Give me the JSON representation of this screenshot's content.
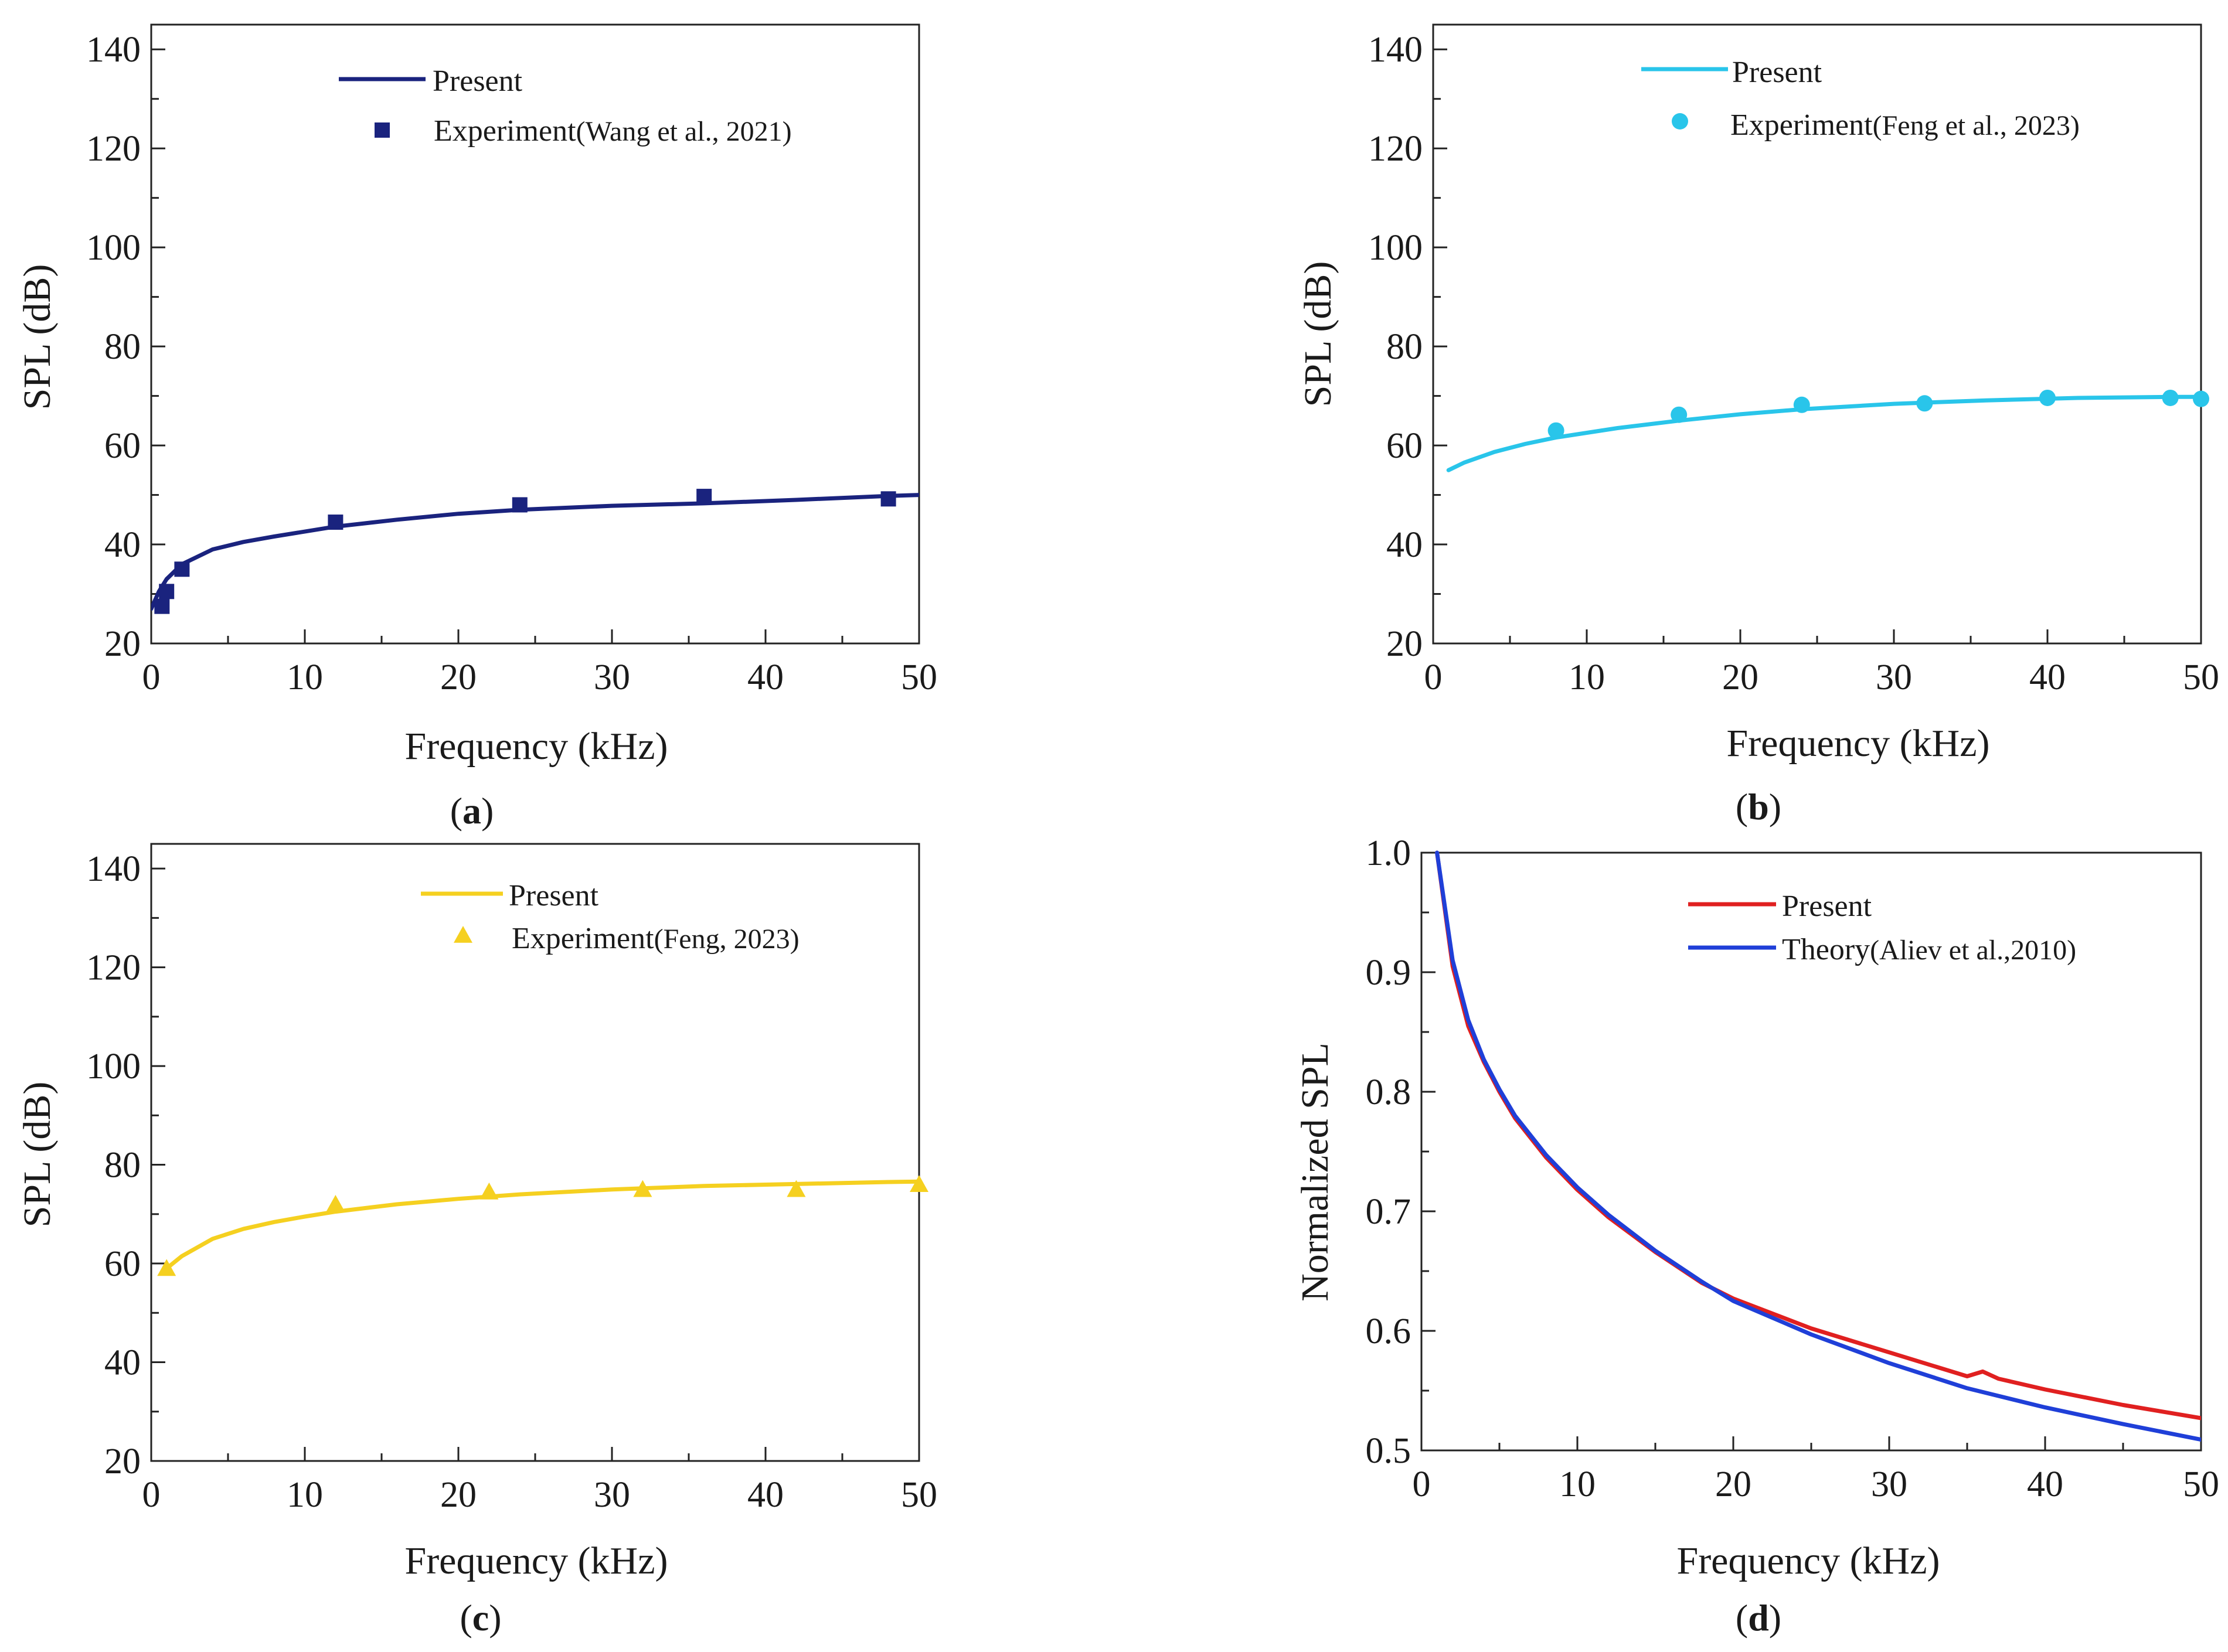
{
  "chart_data": [
    {
      "type": "line",
      "panel": "a",
      "caption_letter": "a",
      "xlabel": "Frequency (kHz)",
      "ylabel": "SPL (dB)",
      "xlim": [
        0,
        50
      ],
      "ylim": [
        20,
        145
      ],
      "xticks": [
        0,
        10,
        20,
        30,
        40,
        50
      ],
      "yticks": [
        20,
        40,
        60,
        80,
        100,
        120,
        140
      ],
      "legend_position": "top-center",
      "series": [
        {
          "name": "Present",
          "kind": "line",
          "color": "#1a237e",
          "x": [
            0,
            0.5,
            1,
            2,
            4,
            6,
            8,
            12,
            16,
            20,
            24,
            30,
            36,
            42,
            48,
            50
          ],
          "y": [
            27,
            30.5,
            33,
            36,
            39,
            40.5,
            41.6,
            43.6,
            45,
            46.2,
            47,
            47.8,
            48.3,
            49,
            49.8,
            50
          ]
        },
        {
          "name": "Experiment",
          "name_note": "(Wang et al., 2021)",
          "kind": "marker",
          "marker": "square",
          "color": "#1a237e",
          "x": [
            0.7,
            1,
            2,
            12,
            24,
            36,
            48
          ],
          "y": [
            27.5,
            30.5,
            35,
            44.5,
            48,
            49.7,
            49.2
          ]
        }
      ]
    },
    {
      "type": "line",
      "panel": "b",
      "caption_letter": "b",
      "xlabel": "Frequency (kHz)",
      "ylabel": "SPL (dB)",
      "xlim": [
        0,
        50
      ],
      "ylim": [
        20,
        145
      ],
      "xticks": [
        0,
        10,
        20,
        30,
        40,
        50
      ],
      "yticks": [
        20,
        40,
        60,
        80,
        100,
        120,
        140
      ],
      "legend_position": "top-center",
      "series": [
        {
          "name": "Present",
          "kind": "line",
          "color": "#29c5ea",
          "x": [
            1,
            2,
            4,
            6,
            8,
            12,
            16,
            20,
            24,
            30,
            36,
            42,
            48,
            50
          ],
          "y": [
            55,
            56.5,
            58.7,
            60.3,
            61.6,
            63.5,
            65,
            66.3,
            67.3,
            68.4,
            69.1,
            69.6,
            69.8,
            69.8
          ]
        },
        {
          "name": "Experiment",
          "name_note": "(Feng et al., 2023)",
          "kind": "marker",
          "marker": "circle",
          "color": "#29c5ea",
          "x": [
            8,
            16,
            24,
            32,
            40,
            48,
            50
          ],
          "y": [
            63,
            66.2,
            68.2,
            68.5,
            69.6,
            69.6,
            69.4
          ]
        }
      ]
    },
    {
      "type": "line",
      "panel": "c",
      "caption_letter": "c",
      "xlabel": "Frequency (kHz)",
      "ylabel": "SPL (dB)",
      "xlim": [
        0,
        50
      ],
      "ylim": [
        20,
        145
      ],
      "xticks": [
        0,
        10,
        20,
        30,
        40,
        50
      ],
      "yticks": [
        20,
        40,
        60,
        80,
        100,
        120,
        140
      ],
      "legend_position": "top-center",
      "series": [
        {
          "name": "Present",
          "kind": "line",
          "color": "#f5d020",
          "x": [
            1,
            2,
            4,
            6,
            8,
            10,
            12,
            16,
            20,
            24,
            30,
            36,
            42,
            48,
            50
          ],
          "y": [
            59,
            61.5,
            65,
            67,
            68.4,
            69.5,
            70.5,
            72,
            73.1,
            74,
            75,
            75.7,
            76.1,
            76.5,
            76.6
          ]
        },
        {
          "name": "Experiment",
          "name_note": "(Feng, 2023)",
          "kind": "marker",
          "marker": "triangle",
          "color": "#f5d020",
          "x": [
            1,
            12,
            22,
            32,
            42,
            50
          ],
          "y": [
            59,
            72,
            74.5,
            75,
            75,
            76
          ]
        }
      ]
    },
    {
      "type": "line",
      "panel": "d",
      "caption_letter": "d",
      "xlabel": "Frequency (kHz)",
      "ylabel": "Normalized SPL",
      "xlim": [
        0,
        50
      ],
      "ylim": [
        0.5,
        1.0
      ],
      "xticks": [
        0,
        10,
        20,
        30,
        40,
        50
      ],
      "yticks": [
        0.5,
        0.6,
        0.7,
        0.8,
        0.9,
        1.0
      ],
      "legend_position": "top-right",
      "series": [
        {
          "name": "Present",
          "kind": "line",
          "color": "#e02020",
          "x": [
            1,
            2,
            3,
            4,
            5,
            6,
            8,
            10,
            12,
            15,
            18,
            20,
            25,
            30,
            35,
            36,
            37,
            40,
            45,
            50
          ],
          "y": [
            1.0,
            0.905,
            0.855,
            0.825,
            0.8,
            0.778,
            0.745,
            0.718,
            0.695,
            0.666,
            0.64,
            0.627,
            0.602,
            0.582,
            0.562,
            0.566,
            0.56,
            0.551,
            0.538,
            0.527
          ]
        },
        {
          "name": "Theory",
          "name_note": "(Aliev et al.,2010)",
          "kind": "line",
          "color": "#1f3fd8",
          "x": [
            1,
            2,
            3,
            4,
            5,
            6,
            8,
            10,
            12,
            15,
            18,
            20,
            25,
            30,
            35,
            40,
            45,
            50
          ],
          "y": [
            1.0,
            0.91,
            0.86,
            0.827,
            0.802,
            0.78,
            0.747,
            0.72,
            0.697,
            0.667,
            0.641,
            0.625,
            0.597,
            0.573,
            0.552,
            0.536,
            0.522,
            0.509
          ]
        }
      ]
    }
  ]
}
